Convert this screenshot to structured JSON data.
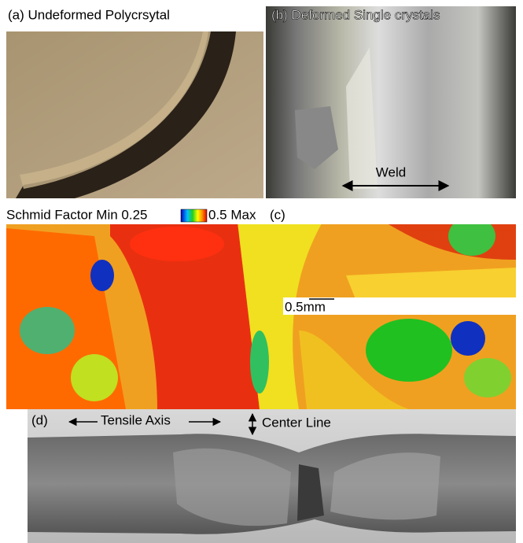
{
  "panels": [
    {
      "label": "(a) Undeformed Polycrsytal"
    },
    {
      "label": "(b) Deformed Single crystals",
      "annotation": "Weld"
    },
    {
      "label": "(c)",
      "colorbar": {
        "title": "Schmid Factor Min 0.25",
        "max_label": "0.5 Max"
      },
      "scale_bar": "0.5mm"
    },
    {
      "label": "(d)",
      "annotations": [
        "Tensile Axis",
        "Center Line"
      ]
    }
  ]
}
